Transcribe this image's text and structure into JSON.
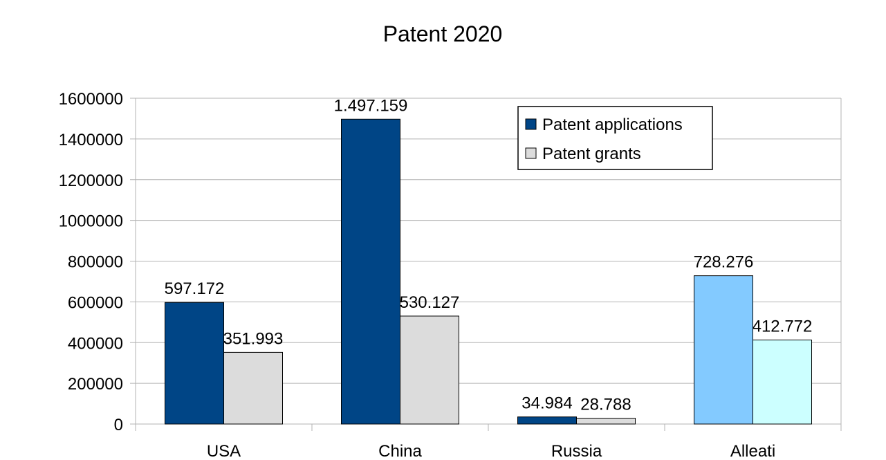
{
  "chart_data": {
    "type": "bar",
    "title": "Patent 2020",
    "categories": [
      "USA",
      "China",
      "Russia",
      "Alleati"
    ],
    "series": [
      {
        "name": "Patent applications",
        "color": "#004586",
        "values": [
          597172,
          1497159,
          34984,
          728276
        ],
        "labels": [
          "597.172",
          "1.497.159",
          "34.984",
          "728.276"
        ]
      },
      {
        "name": "Patent grants",
        "color": "#dcdcdc",
        "values": [
          351993,
          530127,
          28788,
          412772
        ],
        "labels": [
          "351.993",
          "530.127",
          "28.788",
          "412.772"
        ]
      }
    ],
    "point_colors": {
      "Alleati": [
        "#83caff",
        "#ccffff"
      ]
    },
    "yticks": [
      "0",
      "200000",
      "400000",
      "600000",
      "800000",
      "1000000",
      "1200000",
      "1400000",
      "1600000"
    ],
    "ylim": [
      0,
      1600000
    ],
    "grid": true,
    "legend_position": "top-right",
    "xlabel": "",
    "ylabel": ""
  }
}
